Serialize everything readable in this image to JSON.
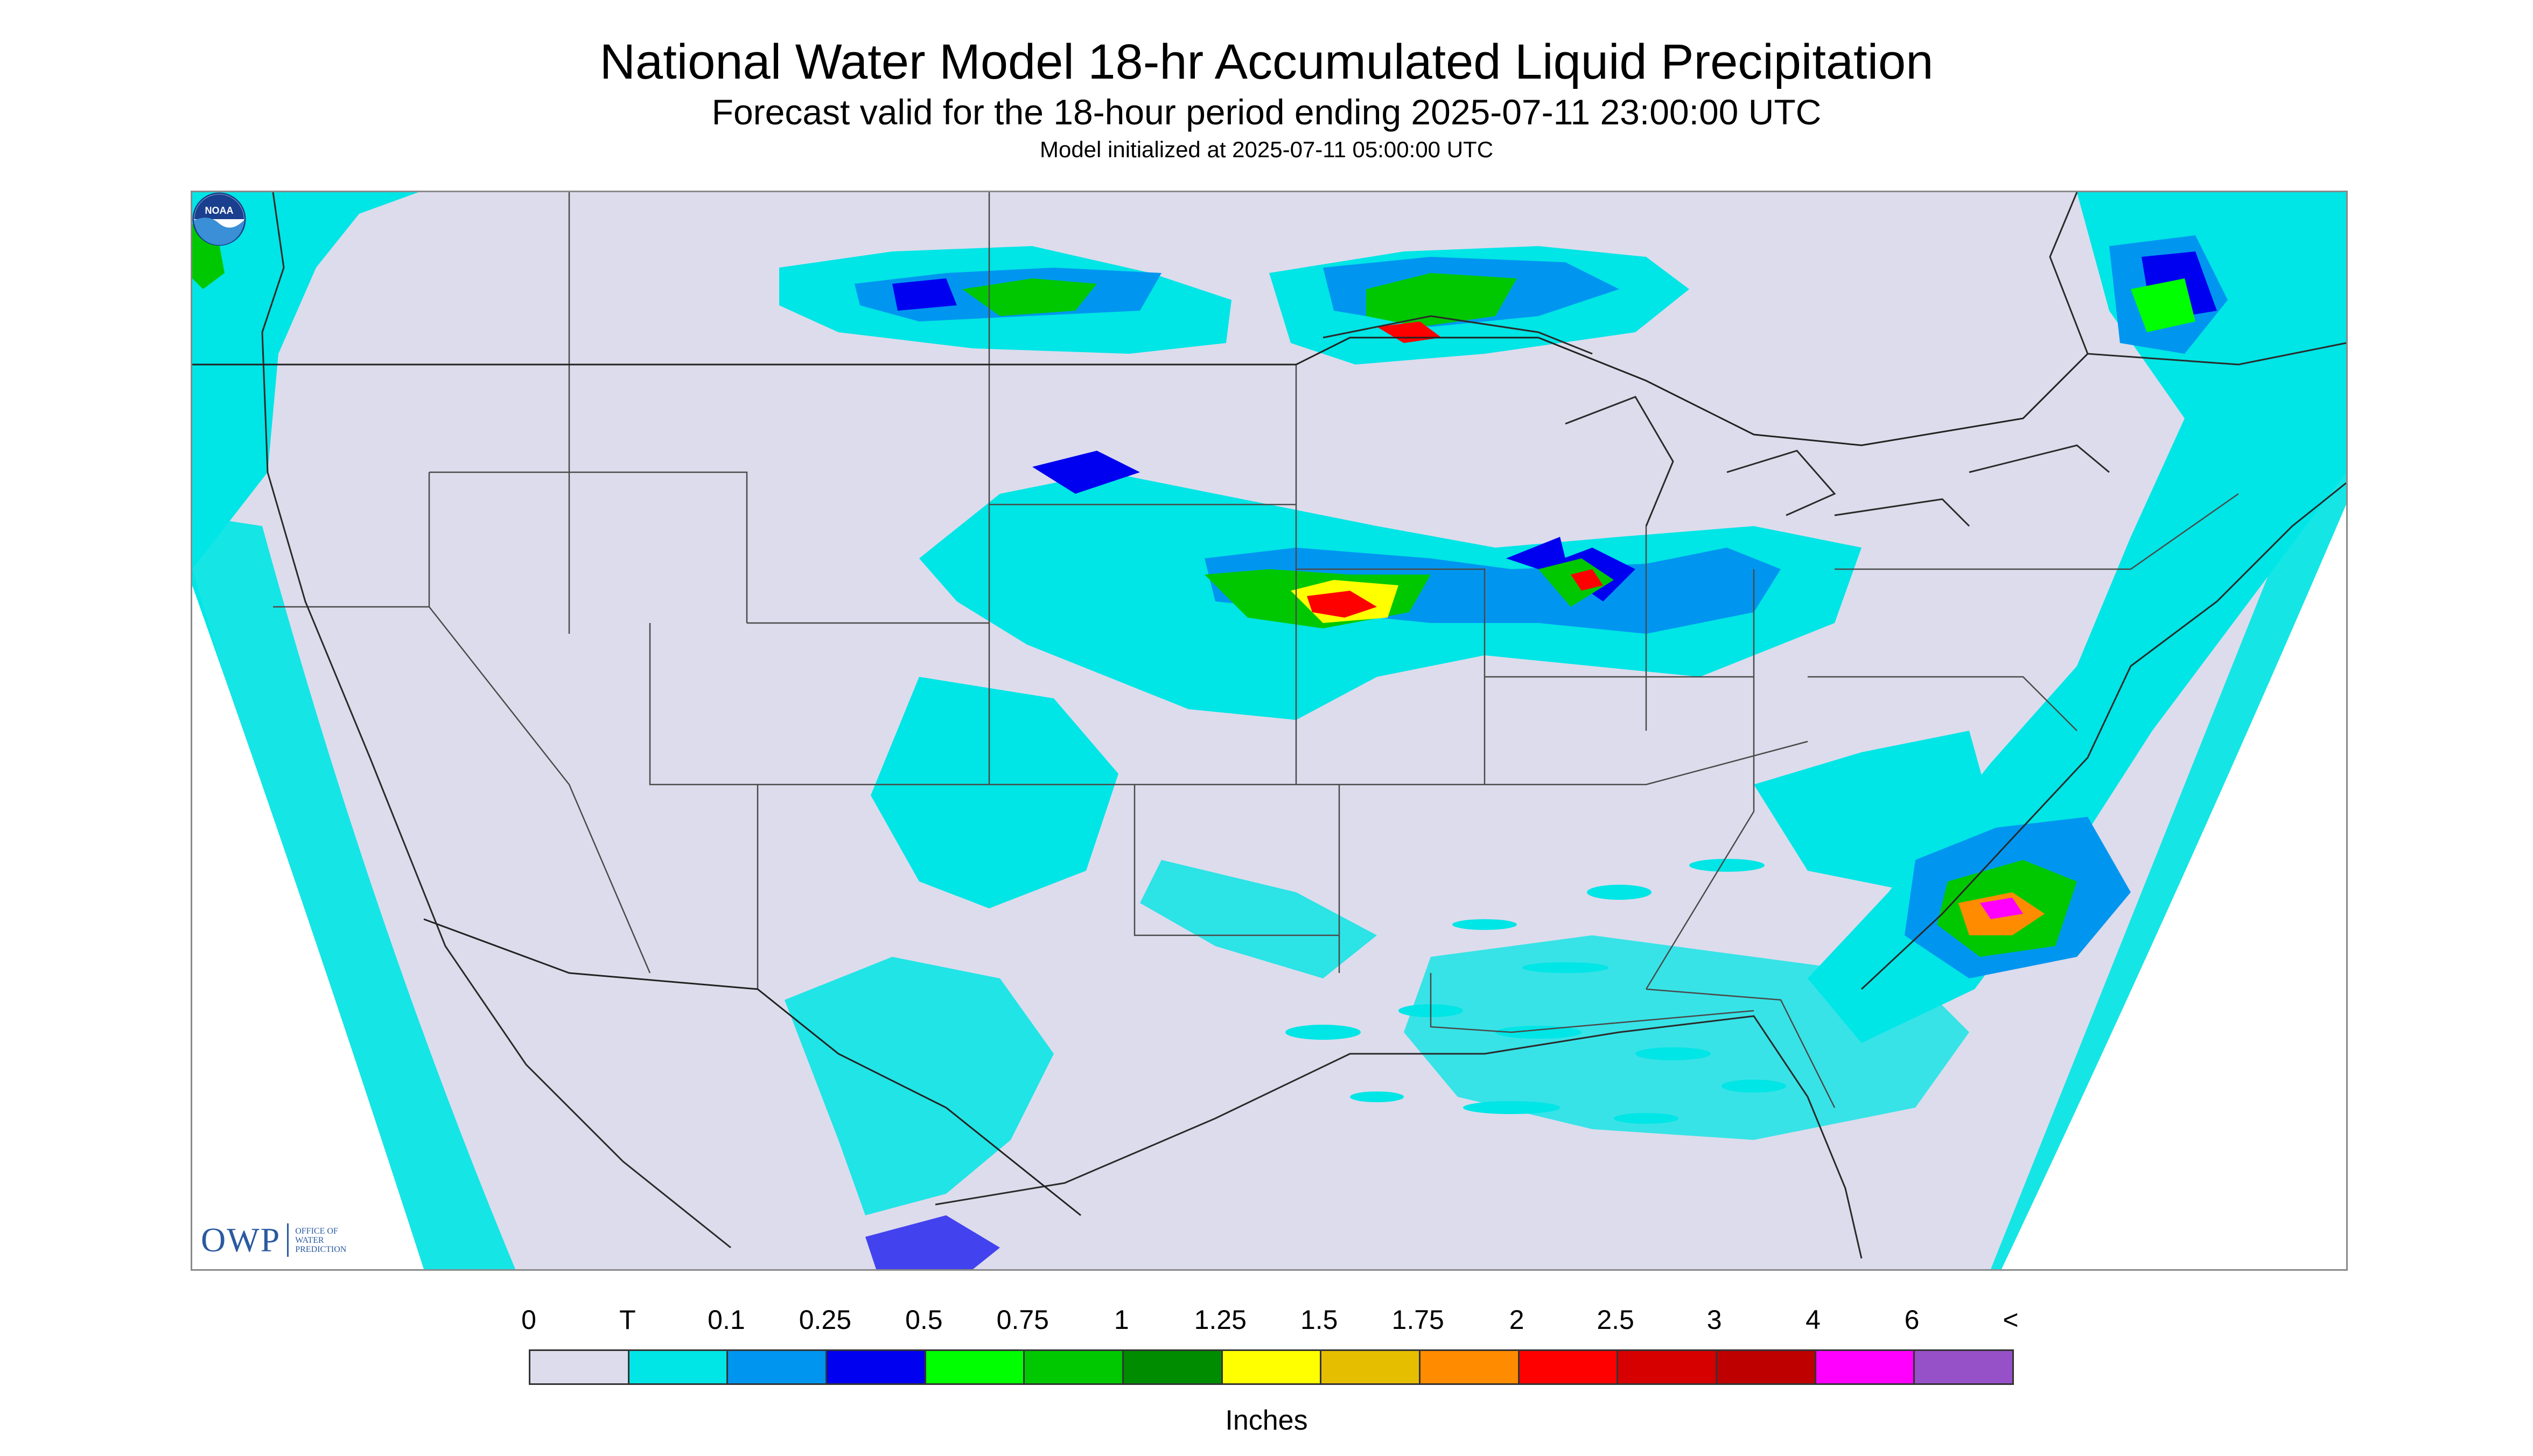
{
  "title": "National Water Model 18-hr Accumulated Liquid Precipitation",
  "subtitle": "Forecast valid for the 18-hour period ending 2025-07-11 23:00:00 UTC",
  "initialized": "Model initialized at 2025-07-11 05:00:00 UTC",
  "logos": {
    "owp_mark": "OWP",
    "owp_text": [
      "OFFICE OF",
      "WATER",
      "PREDICTION"
    ],
    "noaa_text": "NOAA"
  },
  "legend": {
    "units": "Inches",
    "labels": [
      "0",
      "T",
      "0.1",
      "0.25",
      "0.5",
      "0.75",
      "1",
      "1.25",
      "1.5",
      "1.75",
      "2",
      "2.5",
      "3",
      "4",
      "6",
      "<"
    ],
    "colors": [
      "#dcdcec",
      "#00e5e5",
      "#0096f0",
      "#0000f0",
      "#00ff00",
      "#00c800",
      "#008c00",
      "#ffff00",
      "#e6be00",
      "#ff8c00",
      "#ff0000",
      "#d70000",
      "#be0000",
      "#ff00ff",
      "#9650c8"
    ]
  },
  "map": {
    "background": "#dcdcec",
    "outside_projection": "#ffffff"
  }
}
